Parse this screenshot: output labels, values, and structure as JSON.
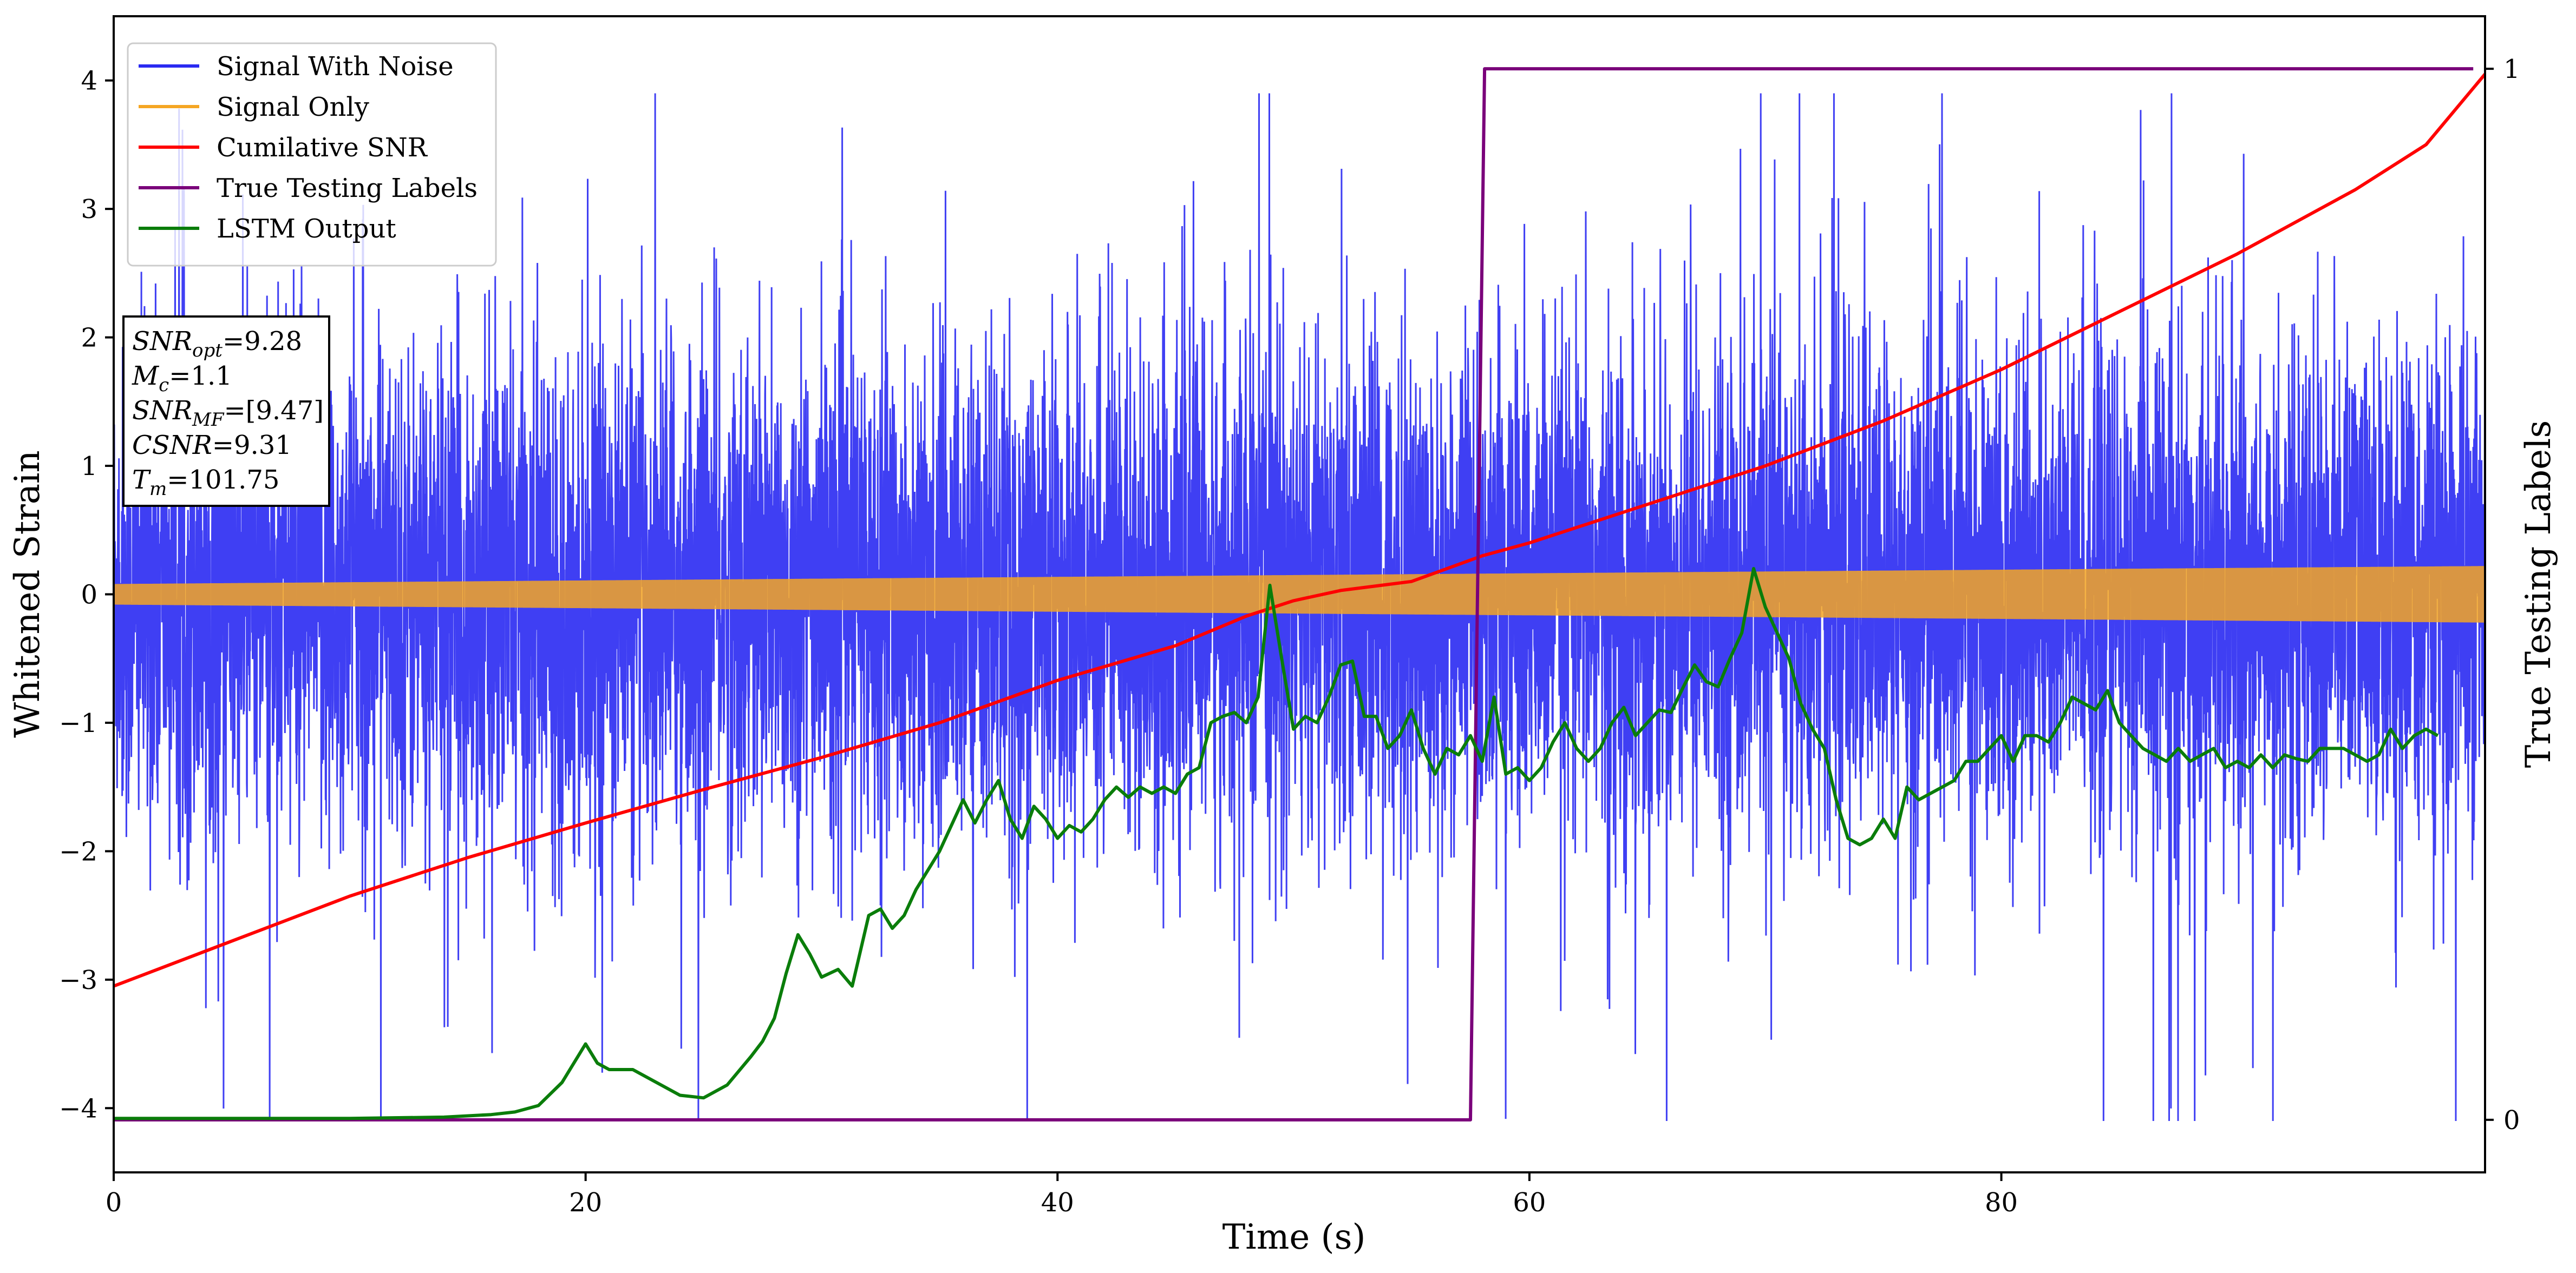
{
  "chart_data": {
    "type": "line",
    "xlabel": "Time (s)",
    "ylabel": "Whitened Strain",
    "y2label": "True Testing Labels",
    "xlim": [
      0,
      100.5
    ],
    "ylim": [
      -4.5,
      4.5
    ],
    "y2lim": [
      -0.05,
      1.05
    ],
    "x_ticks": [
      0,
      20,
      40,
      60,
      80
    ],
    "y_ticks": [
      -4,
      -3,
      -2,
      -1,
      0,
      1,
      2,
      3,
      4
    ],
    "y2_ticks": [
      0,
      1
    ],
    "legend_position": "top-left",
    "grid": false,
    "series": [
      {
        "name": "Signal With Noise",
        "color": "#2a2af2",
        "axis": "left",
        "kind": "noise",
        "points": [
          [
            0,
            0
          ],
          [
            100.5,
            0
          ]
        ],
        "approx_envelope": [
          -4.1,
          3.9
        ]
      },
      {
        "name": "Signal Only",
        "color": "#f5a623",
        "axis": "left",
        "kind": "chirp",
        "amplitude_start": 0.08,
        "amplitude_end": 0.22
      },
      {
        "name": "Cumilative SNR",
        "color": "#ff0000",
        "axis": "left",
        "points": [
          [
            0,
            -3.05
          ],
          [
            5,
            -2.7
          ],
          [
            10,
            -2.35
          ],
          [
            15,
            -2.05
          ],
          [
            20,
            -1.78
          ],
          [
            25,
            -1.52
          ],
          [
            30,
            -1.27
          ],
          [
            35,
            -1.0
          ],
          [
            40,
            -0.67
          ],
          [
            45,
            -0.4
          ],
          [
            48,
            -0.17
          ],
          [
            50,
            -0.05
          ],
          [
            52,
            0.03
          ],
          [
            55,
            0.1
          ],
          [
            58,
            0.3
          ],
          [
            60,
            0.4
          ],
          [
            65,
            0.7
          ],
          [
            70,
            1.0
          ],
          [
            75,
            1.35
          ],
          [
            80,
            1.75
          ],
          [
            85,
            2.2
          ],
          [
            90,
            2.65
          ],
          [
            95,
            3.15
          ],
          [
            98,
            3.5
          ],
          [
            100.5,
            4.05
          ]
        ]
      },
      {
        "name": "True Testing Labels",
        "color": "#7a007a",
        "axis": "right",
        "points": [
          [
            0,
            0
          ],
          [
            57.5,
            0
          ],
          [
            58.1,
            1
          ],
          [
            100,
            1
          ]
        ]
      },
      {
        "name": "LSTM Output",
        "color": "#0a7d0a",
        "axis": "left",
        "points": [
          [
            0,
            -4.08
          ],
          [
            10,
            -4.08
          ],
          [
            14,
            -4.07
          ],
          [
            16,
            -4.05
          ],
          [
            17,
            -4.03
          ],
          [
            18,
            -3.98
          ],
          [
            19,
            -3.8
          ],
          [
            20,
            -3.5
          ],
          [
            20.5,
            -3.65
          ],
          [
            21,
            -3.7
          ],
          [
            22,
            -3.7
          ],
          [
            23,
            -3.8
          ],
          [
            24,
            -3.9
          ],
          [
            25,
            -3.92
          ],
          [
            26,
            -3.82
          ],
          [
            27,
            -3.6
          ],
          [
            27.5,
            -3.48
          ],
          [
            28,
            -3.3
          ],
          [
            28.5,
            -2.95
          ],
          [
            29,
            -2.65
          ],
          [
            29.5,
            -2.8
          ],
          [
            30,
            -2.98
          ],
          [
            30.7,
            -2.92
          ],
          [
            31.3,
            -3.05
          ],
          [
            32,
            -2.5
          ],
          [
            32.5,
            -2.45
          ],
          [
            33,
            -2.6
          ],
          [
            33.5,
            -2.5
          ],
          [
            34,
            -2.3
          ],
          [
            35,
            -2.0
          ],
          [
            35.5,
            -1.8
          ],
          [
            36,
            -1.6
          ],
          [
            36.5,
            -1.78
          ],
          [
            37,
            -1.6
          ],
          [
            37.5,
            -1.45
          ],
          [
            38,
            -1.75
          ],
          [
            38.5,
            -1.9
          ],
          [
            39,
            -1.65
          ],
          [
            39.5,
            -1.75
          ],
          [
            40,
            -1.9
          ],
          [
            40.5,
            -1.8
          ],
          [
            41,
            -1.85
          ],
          [
            41.5,
            -1.75
          ],
          [
            42,
            -1.6
          ],
          [
            42.5,
            -1.5
          ],
          [
            43,
            -1.58
          ],
          [
            43.5,
            -1.5
          ],
          [
            44,
            -1.55
          ],
          [
            44.5,
            -1.5
          ],
          [
            45,
            -1.55
          ],
          [
            45.5,
            -1.4
          ],
          [
            46,
            -1.35
          ],
          [
            46.5,
            -1.0
          ],
          [
            47,
            -0.95
          ],
          [
            47.5,
            -0.92
          ],
          [
            48,
            -1.0
          ],
          [
            48.5,
            -0.8
          ],
          [
            49,
            0.07
          ],
          [
            49.5,
            -0.5
          ],
          [
            50,
            -1.05
          ],
          [
            50.5,
            -0.95
          ],
          [
            51,
            -1.0
          ],
          [
            51.5,
            -0.8
          ],
          [
            52,
            -0.55
          ],
          [
            52.5,
            -0.52
          ],
          [
            53,
            -0.95
          ],
          [
            53.5,
            -0.95
          ],
          [
            54,
            -1.2
          ],
          [
            54.5,
            -1.1
          ],
          [
            55,
            -0.9
          ],
          [
            55.5,
            -1.2
          ],
          [
            56,
            -1.4
          ],
          [
            56.5,
            -1.2
          ],
          [
            57,
            -1.25
          ],
          [
            57.5,
            -1.1
          ],
          [
            58,
            -1.3
          ],
          [
            58.5,
            -0.8
          ],
          [
            59,
            -1.4
          ],
          [
            59.5,
            -1.35
          ],
          [
            60,
            -1.45
          ],
          [
            60.5,
            -1.35
          ],
          [
            61,
            -1.15
          ],
          [
            61.5,
            -1.0
          ],
          [
            62,
            -1.2
          ],
          [
            62.5,
            -1.3
          ],
          [
            63,
            -1.2
          ],
          [
            63.5,
            -1.0
          ],
          [
            64,
            -0.88
          ],
          [
            64.5,
            -1.1
          ],
          [
            65,
            -1.0
          ],
          [
            65.5,
            -0.9
          ],
          [
            66,
            -0.92
          ],
          [
            66.5,
            -0.73
          ],
          [
            67,
            -0.55
          ],
          [
            67.5,
            -0.68
          ],
          [
            68,
            -0.72
          ],
          [
            68.5,
            -0.5
          ],
          [
            69,
            -0.3
          ],
          [
            69.5,
            0.2
          ],
          [
            70,
            -0.1
          ],
          [
            70.5,
            -0.3
          ],
          [
            71,
            -0.5
          ],
          [
            71.5,
            -0.85
          ],
          [
            72,
            -1.05
          ],
          [
            72.5,
            -1.2
          ],
          [
            73,
            -1.6
          ],
          [
            73.5,
            -1.9
          ],
          [
            74,
            -1.95
          ],
          [
            74.5,
            -1.9
          ],
          [
            75,
            -1.75
          ],
          [
            75.5,
            -1.9
          ],
          [
            76,
            -1.5
          ],
          [
            76.5,
            -1.6
          ],
          [
            77,
            -1.55
          ],
          [
            77.5,
            -1.5
          ],
          [
            78,
            -1.45
          ],
          [
            78.5,
            -1.3
          ],
          [
            79,
            -1.3
          ],
          [
            79.5,
            -1.2
          ],
          [
            80,
            -1.1
          ],
          [
            80.5,
            -1.3
          ],
          [
            81,
            -1.1
          ],
          [
            81.5,
            -1.1
          ],
          [
            82,
            -1.15
          ],
          [
            82.5,
            -1.0
          ],
          [
            83,
            -0.8
          ],
          [
            83.5,
            -0.85
          ],
          [
            84,
            -0.9
          ],
          [
            84.5,
            -0.75
          ],
          [
            85,
            -1.0
          ],
          [
            85.5,
            -1.1
          ],
          [
            86,
            -1.2
          ],
          [
            86.5,
            -1.25
          ],
          [
            87,
            -1.3
          ],
          [
            87.5,
            -1.2
          ],
          [
            88,
            -1.3
          ],
          [
            88.5,
            -1.25
          ],
          [
            89,
            -1.2
          ],
          [
            89.5,
            -1.35
          ],
          [
            90,
            -1.3
          ],
          [
            90.5,
            -1.35
          ],
          [
            91,
            -1.25
          ],
          [
            91.5,
            -1.35
          ],
          [
            92,
            -1.25
          ],
          [
            92.5,
            -1.28
          ],
          [
            93,
            -1.3
          ],
          [
            93.5,
            -1.2
          ],
          [
            94,
            -1.2
          ],
          [
            94.5,
            -1.2
          ],
          [
            95,
            -1.25
          ],
          [
            95.5,
            -1.3
          ],
          [
            96,
            -1.25
          ],
          [
            96.5,
            -1.05
          ],
          [
            97,
            -1.2
          ],
          [
            97.5,
            -1.1
          ],
          [
            98,
            -1.05
          ],
          [
            98.5,
            -1.1
          ]
        ]
      }
    ],
    "annotation_box": [
      {
        "base": "SNR",
        "sub": "opt",
        "value": "=9.28"
      },
      {
        "base": "M",
        "sub": "c",
        "value": "=1.1"
      },
      {
        "base": "SNR",
        "sub": "MF",
        "value": "=[9.47]"
      },
      {
        "base": "CSNR",
        "sub": "",
        "value": "=9.31"
      },
      {
        "base": "T",
        "sub": "m",
        "value": "=101.75"
      }
    ]
  }
}
